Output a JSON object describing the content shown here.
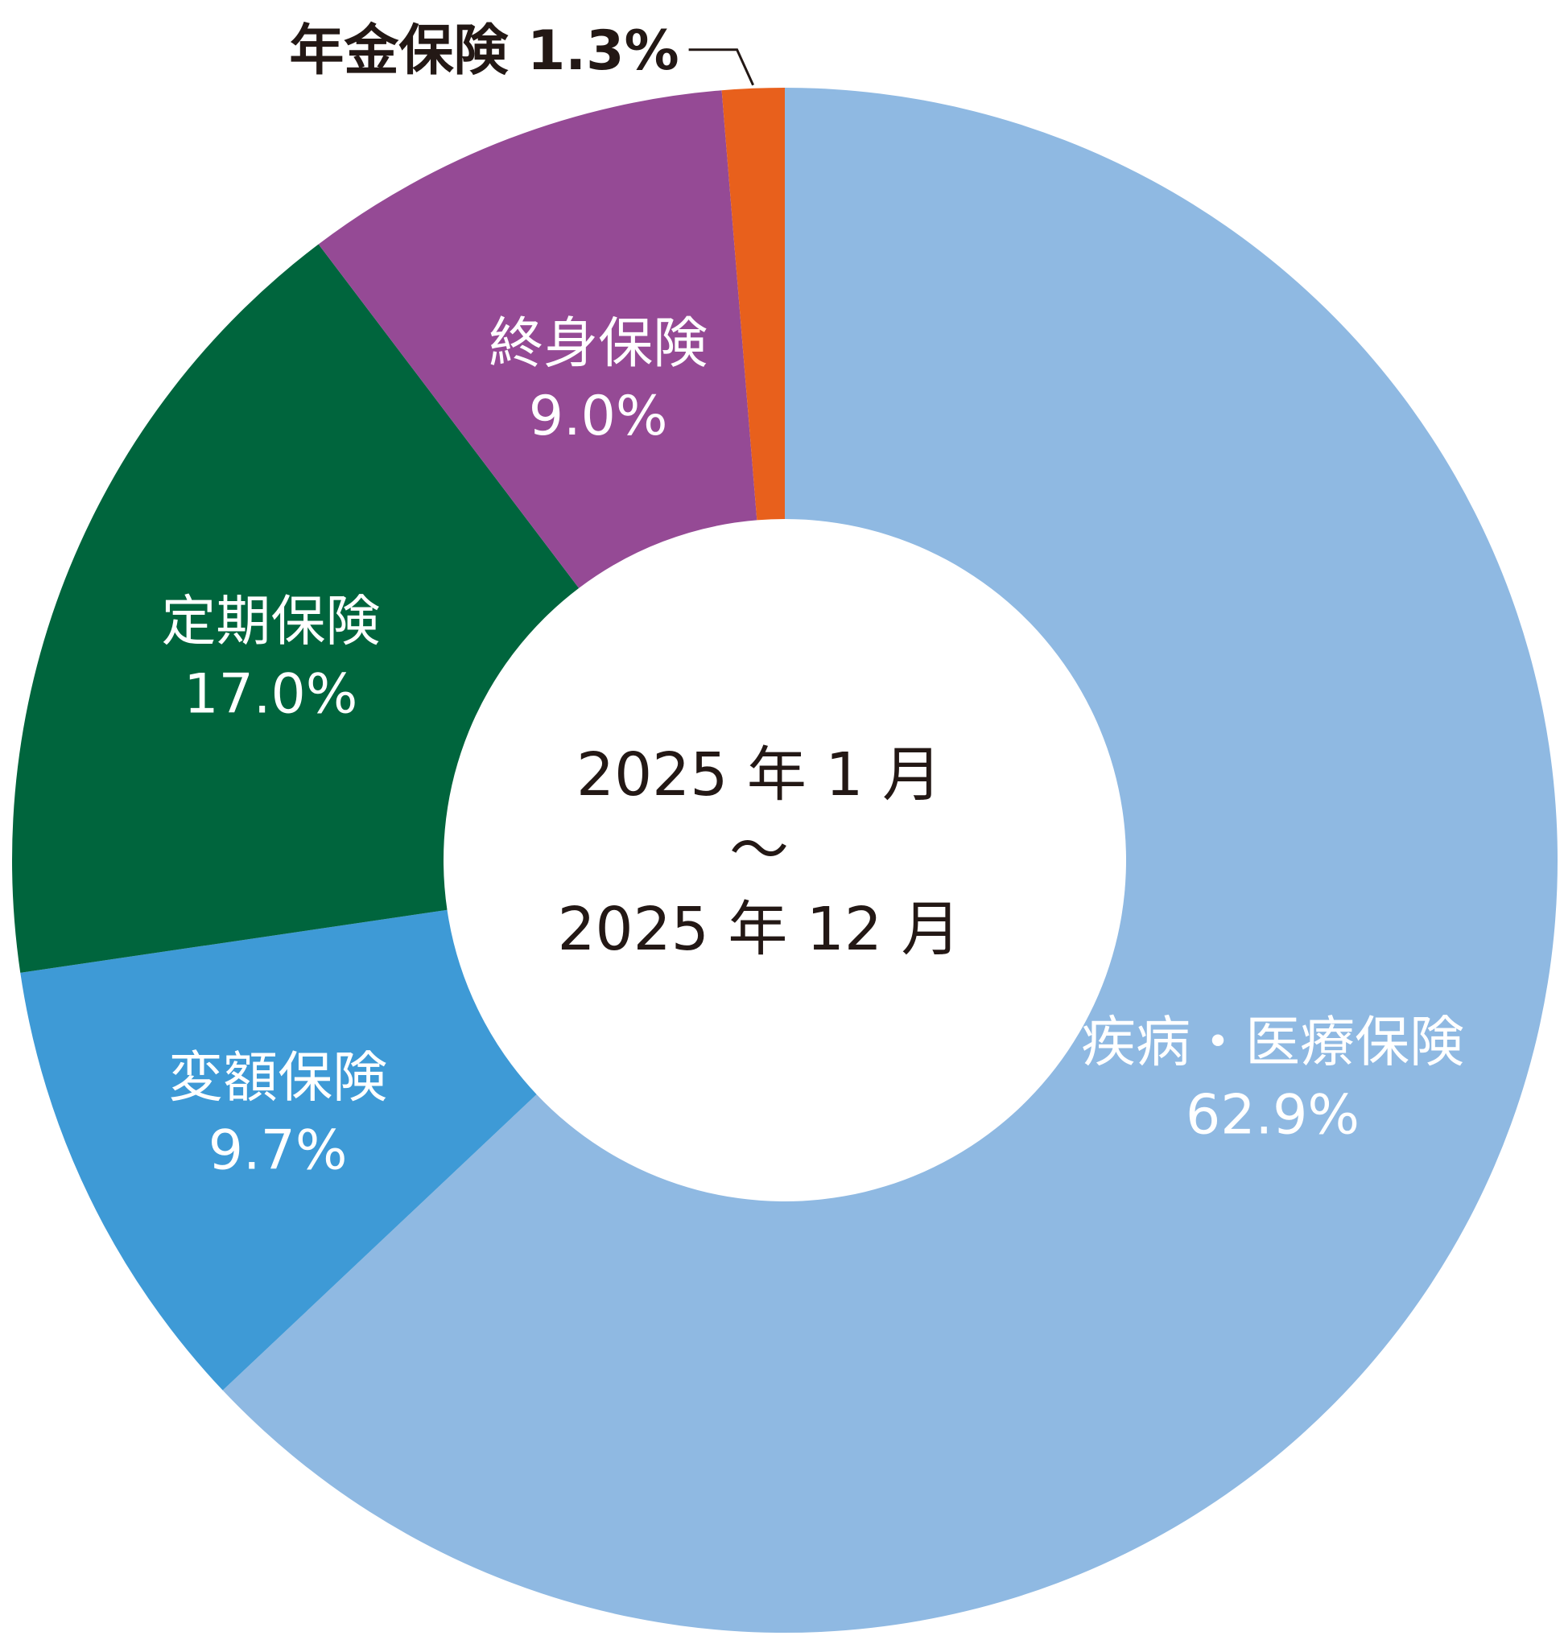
{
  "chart_data": {
    "type": "pie",
    "donut": true,
    "center_text": [
      "2025 年 1 月",
      "～",
      "2025 年 12 月"
    ],
    "slices": [
      {
        "name": "疾病・医療保険",
        "value": 62.9,
        "label": "62.9%",
        "color": "#8fb9e2"
      },
      {
        "name": "変額保険",
        "value": 9.7,
        "label": "9.7%",
        "color": "#3e9ad6"
      },
      {
        "name": "定期保険",
        "value": 17.0,
        "label": "17.0%",
        "color": "#00653d"
      },
      {
        "name": "終身保険",
        "value": 9.0,
        "label": "9.0%",
        "color": "#954a95"
      },
      {
        "name": "年金保険",
        "value": 1.3,
        "label": "1.3%",
        "color": "#e8601c"
      }
    ]
  }
}
